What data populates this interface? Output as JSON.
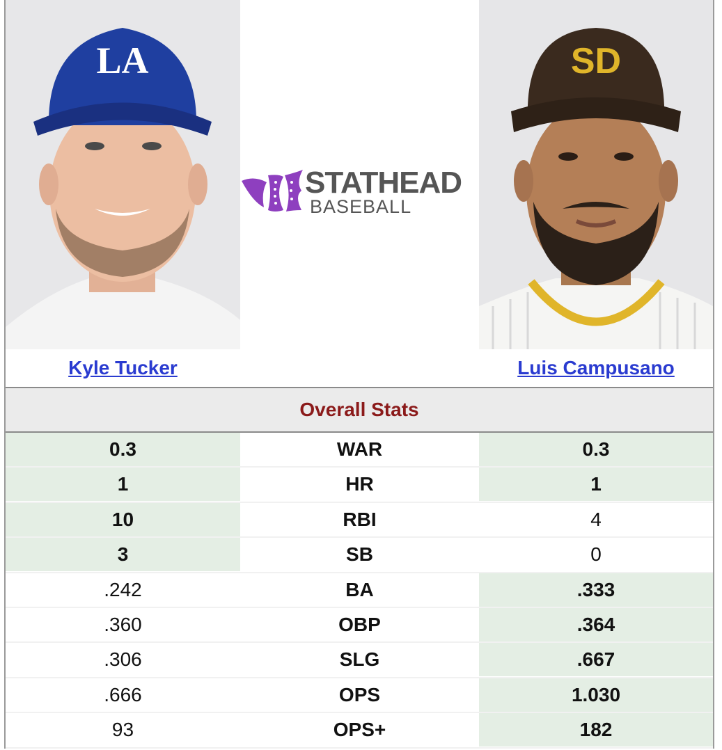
{
  "brand": {
    "line1": "STATHEAD",
    "line2": "BASEBALL",
    "accent_color": "#8e3fbf"
  },
  "players": {
    "left": {
      "name": "Kyle Tucker",
      "cap_logo": "LA",
      "cap_color": "#1f3fa0"
    },
    "right": {
      "name": "Luis Campusano",
      "cap_logo": "SD",
      "cap_color": "#3a2a1e"
    }
  },
  "section": {
    "title": "Overall Stats"
  },
  "stats": [
    {
      "label": "WAR",
      "left": "0.3",
      "right": "0.3",
      "left_win": true,
      "right_win": true
    },
    {
      "label": "HR",
      "left": "1",
      "right": "1",
      "left_win": true,
      "right_win": true
    },
    {
      "label": "RBI",
      "left": "10",
      "right": "4",
      "left_win": true,
      "right_win": false
    },
    {
      "label": "SB",
      "left": "3",
      "right": "0",
      "left_win": true,
      "right_win": false
    },
    {
      "label": "BA",
      "left": ".242",
      "right": ".333",
      "left_win": false,
      "right_win": true
    },
    {
      "label": "OBP",
      "left": ".360",
      "right": ".364",
      "left_win": false,
      "right_win": true
    },
    {
      "label": "SLG",
      "left": ".306",
      "right": ".667",
      "left_win": false,
      "right_win": true
    },
    {
      "label": "OPS",
      "left": ".666",
      "right": "1.030",
      "left_win": false,
      "right_win": true
    },
    {
      "label": "OPS+",
      "left": "93",
      "right": "182",
      "left_win": false,
      "right_win": true
    }
  ],
  "colors": {
    "win_bg": "#e4eee4",
    "link": "#2a3bd0",
    "section_title": "#8b1a1a"
  }
}
